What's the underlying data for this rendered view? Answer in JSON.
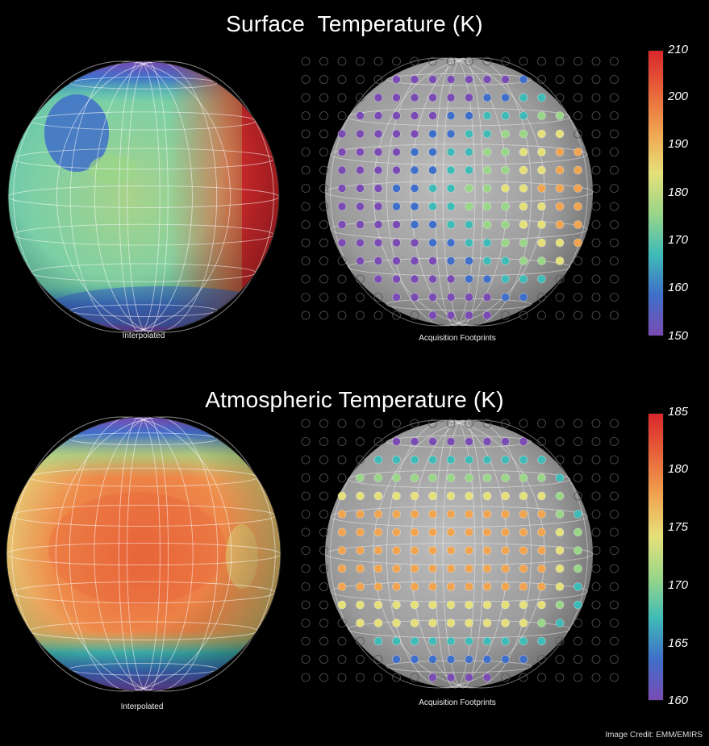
{
  "panels": [
    {
      "id": "surface",
      "title": "Surface  Temperature (K)",
      "left_caption": "Interpolated",
      "right_caption": "Acquisition Footprints",
      "colorbar": {
        "labels": [
          "210",
          "200",
          "190",
          "180",
          "170",
          "160",
          "150"
        ],
        "colors": [
          "#d9262b",
          "#e8643a",
          "#f0a450",
          "#e6e07a",
          "#9ad688",
          "#3fbbb7",
          "#3f6fc9",
          "#7a4bb3"
        ]
      }
    },
    {
      "id": "atmos",
      "title": "Atmospheric Temperature (K)",
      "left_caption": "Interpolated",
      "right_caption": "Acquisition Footprints",
      "colorbar": {
        "labels": [
          "185",
          "180",
          "175",
          "170",
          "165",
          "160"
        ],
        "colors": [
          "#d9262b",
          "#e8643a",
          "#f0a450",
          "#e6e07a",
          "#9ad688",
          "#3fbbb7",
          "#3f6fc9",
          "#7a4bb3"
        ]
      }
    }
  ],
  "credit": "Image Credit: EMM/EMIRS"
}
